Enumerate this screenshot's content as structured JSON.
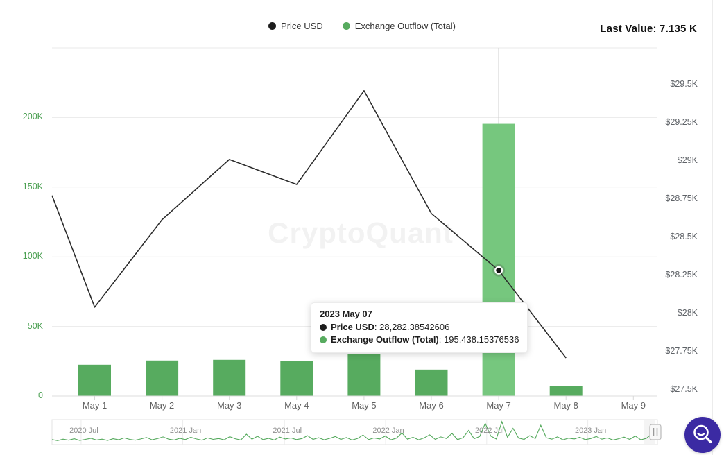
{
  "header": {
    "last_value": "Last Value: 7.135 K"
  },
  "legend": {
    "items": [
      {
        "label": "Price USD",
        "color": "#1d1d1d"
      },
      {
        "label": "Exchange Outflow (Total)",
        "color": "#57ab5f"
      }
    ]
  },
  "watermark": "CryptoQuant",
  "tooltip": {
    "title": "2023 May 07",
    "rows": [
      {
        "label": "Price USD",
        "value": "28,282.38542606",
        "color": "#1d1d1d"
      },
      {
        "label": "Exchange Outflow (Total)",
        "value": "195,438.15376536",
        "color": "#57ab5f"
      }
    ]
  },
  "chart_data": {
    "type": "line+bar",
    "title": "",
    "categories": [
      "May 1",
      "May 2",
      "May 3",
      "May 4",
      "May 5",
      "May 6",
      "May 7",
      "May 8",
      "May 9"
    ],
    "series": [
      {
        "name": "Price USD",
        "type": "line",
        "axis": "right",
        "color": "#2b2b2b",
        "values": [
          28041,
          28614,
          29009,
          28845,
          29459,
          28655,
          28282.38542606,
          27709,
          null
        ],
        "clip_start_value": 28773
      },
      {
        "name": "Exchange Outflow (Total)",
        "type": "bar",
        "axis": "left",
        "color": "#57ab5f",
        "highlight_color": "#76c77e",
        "highlight_index": 6,
        "values": [
          22500,
          25500,
          26000,
          25000,
          30000,
          19000,
          195438.15376536,
          7135,
          null
        ]
      }
    ],
    "left_axis": {
      "color": "#4ba052",
      "range": [
        0,
        250000
      ],
      "ticks": [
        {
          "label": "0",
          "value": 0
        },
        {
          "label": "50K",
          "value": 50000
        },
        {
          "label": "100K",
          "value": 100000
        },
        {
          "label": "150K",
          "value": 150000
        },
        {
          "label": "200K",
          "value": 200000
        }
      ]
    },
    "right_axis": {
      "color": "#5f6368",
      "range": [
        27459,
        29740
      ],
      "ticks": [
        {
          "label": "$27.5K",
          "value": 27500
        },
        {
          "label": "$27.75K",
          "value": 27750
        },
        {
          "label": "$28K",
          "value": 28000
        },
        {
          "label": "$28.25K",
          "value": 28250
        },
        {
          "label": "$28.5K",
          "value": 28500
        },
        {
          "label": "$28.75K",
          "value": 28750
        },
        {
          "label": "$29K",
          "value": 29000
        },
        {
          "label": "$29.25K",
          "value": 29250
        },
        {
          "label": "$29.5K",
          "value": 29500
        }
      ]
    },
    "grid": true,
    "legend_position": "top-center",
    "crosshair_category": "May 7",
    "tooltip_point": {
      "category": "May 7",
      "price_usd": 28282.38542606,
      "exchange_outflow_total": 195438.15376536
    }
  },
  "navigator": {
    "color": "#54a95c",
    "labels": [
      {
        "label": "2020 Jul",
        "f": 0.048
      },
      {
        "label": "2021 Jan",
        "f": 0.216
      },
      {
        "label": "2021 Jul",
        "f": 0.384
      },
      {
        "label": "2022 Jan",
        "f": 0.551
      },
      {
        "label": "2022 Jul",
        "f": 0.718
      },
      {
        "label": "2023 Jan",
        "f": 0.885
      }
    ],
    "values": [
      14,
      9,
      16,
      11,
      18,
      10,
      15,
      20,
      12,
      16,
      10,
      18,
      13,
      22,
      15,
      11,
      17,
      24,
      13,
      19,
      27,
      16,
      12,
      20,
      14,
      25,
      17,
      11,
      22,
      15,
      19,
      13,
      28,
      18,
      12,
      40,
      16,
      30,
      14,
      20,
      12,
      26,
      17,
      22,
      14,
      19,
      33,
      15,
      23,
      13,
      20,
      29,
      15,
      24,
      12,
      19,
      36,
      14,
      22,
      17,
      31,
      13,
      21,
      46,
      16,
      25,
      13,
      22,
      37,
      15,
      27,
      19,
      44,
      14,
      23,
      58,
      18,
      29,
      92,
      31,
      17,
      100,
      25,
      68,
      21,
      15,
      33,
      19,
      83,
      23,
      16,
      27,
      13,
      21,
      17,
      25,
      14,
      19,
      29,
      16,
      22,
      12,
      18,
      26,
      15,
      31,
      13,
      20,
      42,
      24
    ]
  },
  "zoom_button": {
    "icon": "magnifier-smile",
    "color": "#3b2aa3"
  },
  "colors": {
    "bar": "#57ab5f",
    "bar_highlight": "#76c77e",
    "line": "#2b2b2b",
    "grid": "#e9e9e9",
    "axis_line": "#dcdcdc",
    "crosshair": "#cfcfcf",
    "left_labels": "#4ba052",
    "right_labels": "#5f6368",
    "x_labels": "#616161",
    "nav_labels": "#909090",
    "watermark": "#f2f2f2",
    "button": "#3b2aa3"
  }
}
